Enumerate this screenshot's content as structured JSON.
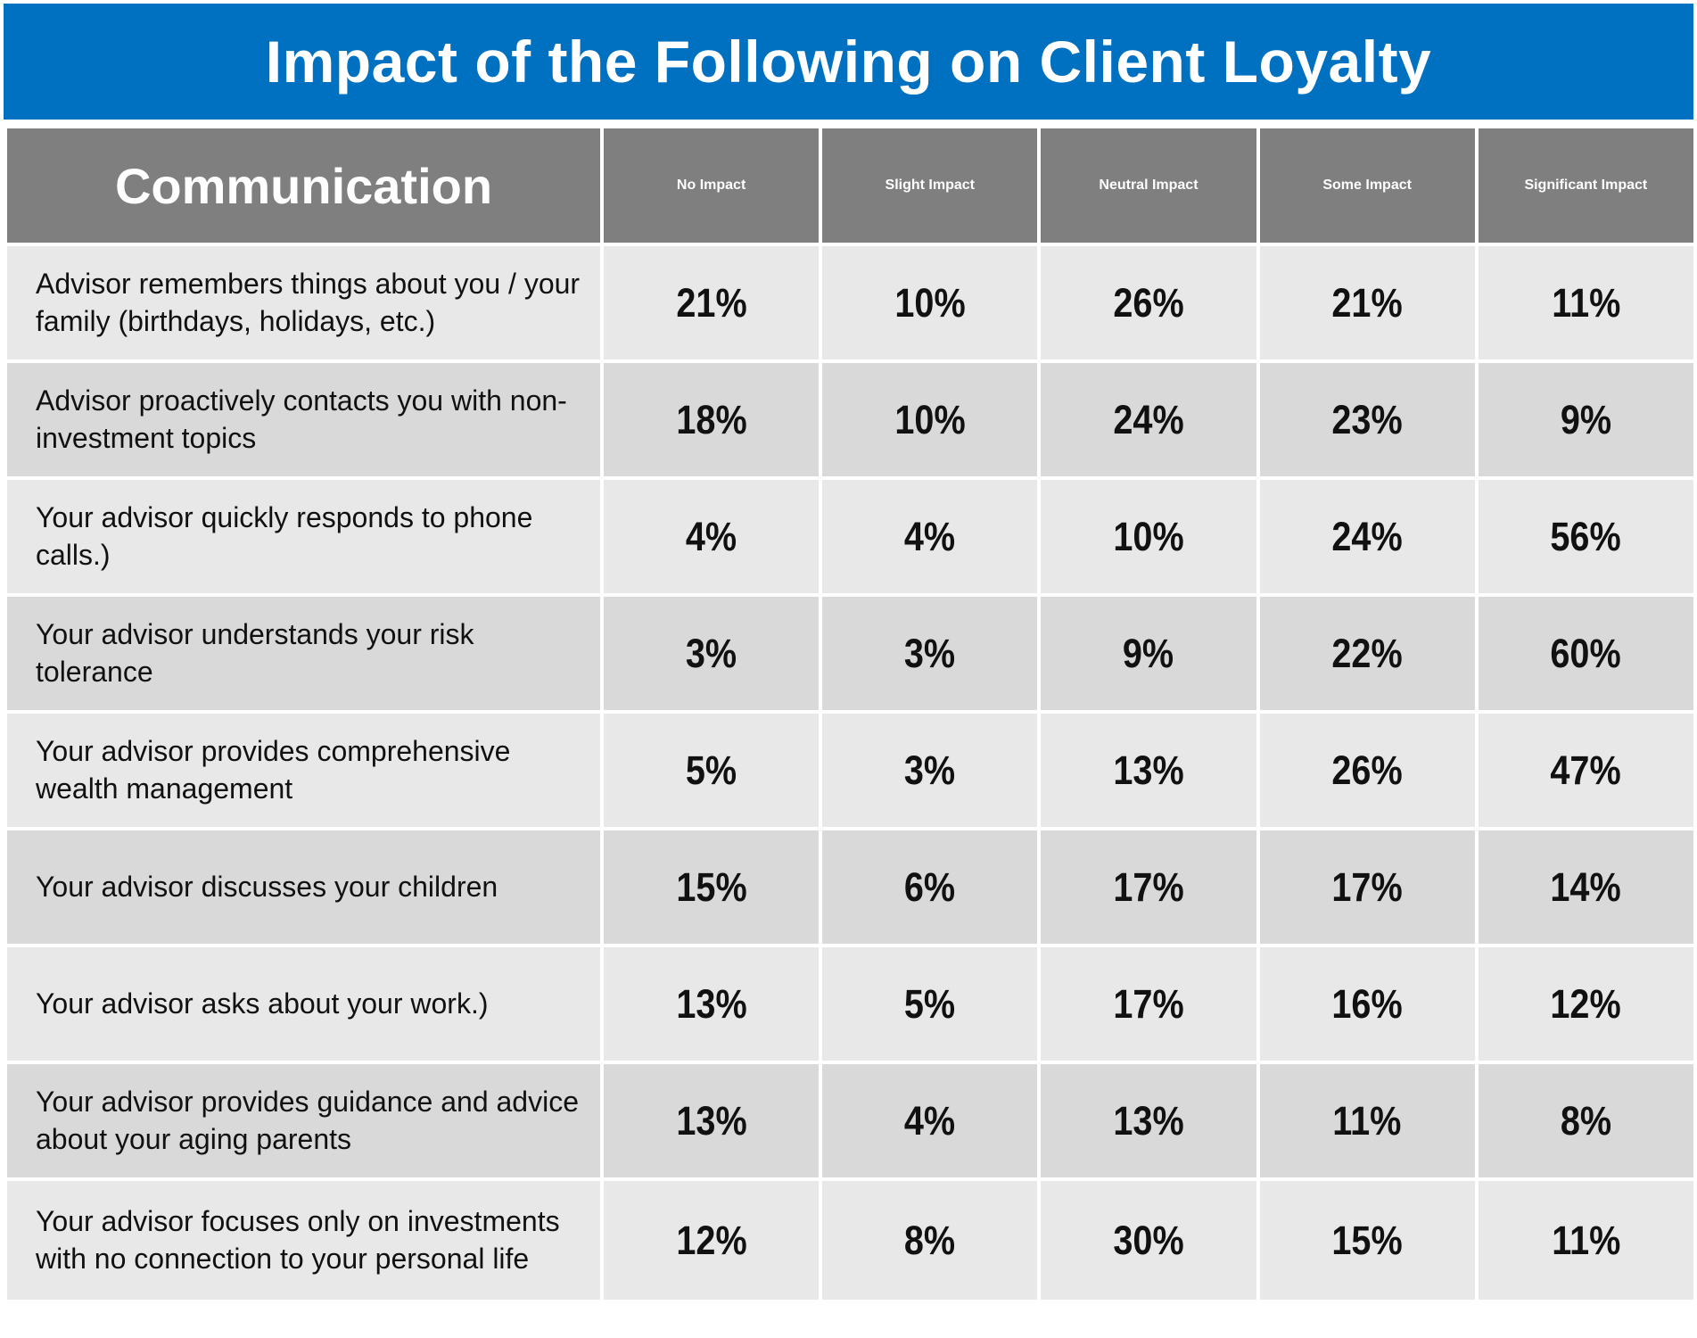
{
  "title": "Impact of the Following on Client Loyalty",
  "header": {
    "category_label": "Communication",
    "columns": [
      "No Impact",
      "Slight Impact",
      "Neutral Impact",
      "Some Impact",
      "Significant Impact"
    ]
  },
  "chart_data": {
    "type": "table",
    "title": "Impact of the Following on Client Loyalty",
    "row_header": "Communication",
    "columns": [
      "No Impact",
      "Slight Impact",
      "Neutral Impact",
      "Some Impact",
      "Significant Impact"
    ],
    "rows": [
      {
        "label": "Advisor remembers things about you / your family (birthdays, holidays, etc.)",
        "values": [
          "21%",
          "10%",
          "26%",
          "21%",
          "11%"
        ]
      },
      {
        "label": "Advisor proactively contacts you with non-investment topics",
        "values": [
          "18%",
          "10%",
          "24%",
          "23%",
          "9%"
        ]
      },
      {
        "label": "Your advisor quickly responds to phone calls.)",
        "values": [
          "4%",
          "4%",
          "10%",
          "24%",
          "56%"
        ]
      },
      {
        "label": "Your advisor understands your risk tolerance",
        "values": [
          "3%",
          "3%",
          "9%",
          "22%",
          "60%"
        ]
      },
      {
        "label": "Your advisor provides comprehensive wealth management",
        "values": [
          "5%",
          "3%",
          "13%",
          "26%",
          "47%"
        ]
      },
      {
        "label": "Your advisor discusses your children",
        "values": [
          "15%",
          "6%",
          "17%",
          "17%",
          "14%"
        ]
      },
      {
        "label": "Your advisor asks about your work.)",
        "values": [
          "13%",
          "5%",
          "17%",
          "16%",
          "12%"
        ]
      },
      {
        "label": "Your advisor provides guidance and advice about your aging parents",
        "values": [
          "13%",
          "4%",
          "13%",
          "11%",
          "8%"
        ]
      },
      {
        "label": "Your advisor focuses only on investments with no connection to your personal life",
        "values": [
          "12%",
          "8%",
          "30%",
          "15%",
          "11%"
        ]
      }
    ]
  },
  "colors": {
    "title_background": "#0070c0",
    "header_background": "#7f7f7f",
    "row_light": "#e8e8e8",
    "row_dark": "#d9d9d9"
  }
}
